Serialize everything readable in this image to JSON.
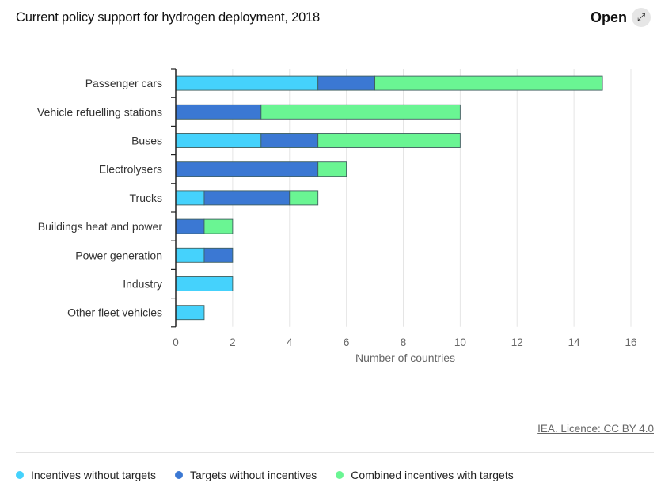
{
  "header": {
    "title": "Current policy support for hydrogen deployment, 2018",
    "open_label": "Open",
    "open_icon": "expand-arrow-icon"
  },
  "footer": {
    "licence": "IEA. Licence: CC BY 4.0"
  },
  "chart_data": {
    "type": "bar",
    "orientation": "horizontal",
    "stacked": true,
    "title": "Current policy support for hydrogen deployment, 2018",
    "xlabel": "Number of countries",
    "ylabel": "",
    "xlim": [
      0,
      16
    ],
    "xticks": [
      0,
      2,
      4,
      6,
      8,
      10,
      12,
      14,
      16
    ],
    "grid": true,
    "legend_position": "bottom",
    "categories": [
      "Passenger cars",
      "Vehicle refuelling stations",
      "Buses",
      "Electrolysers",
      "Trucks",
      "Buildings heat and power",
      "Power generation",
      "Industry",
      "Other fleet vehicles"
    ],
    "series": [
      {
        "name": "Incentives without targets",
        "color": "#45d2fc",
        "values": [
          5,
          0,
          3,
          0,
          1,
          0,
          1,
          2,
          1
        ]
      },
      {
        "name": "Targets without incentives",
        "color": "#3b78d3",
        "values": [
          2,
          3,
          2,
          5,
          3,
          1,
          1,
          0,
          0
        ]
      },
      {
        "name": "Combined incentives with targets",
        "color": "#6af593",
        "values": [
          8,
          7,
          5,
          1,
          1,
          1,
          0,
          0,
          0
        ]
      }
    ]
  }
}
